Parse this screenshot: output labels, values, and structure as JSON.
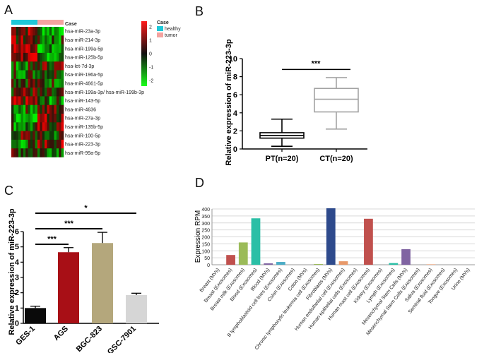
{
  "panels": {
    "a": "A",
    "b": "B",
    "c": "C",
    "d": "D"
  },
  "chart_data": [
    {
      "type": "heatmap",
      "panel": "A",
      "annotation_label": "Case",
      "legend_title": "Case",
      "legend": [
        {
          "label": "healthy",
          "color": "#1ec8d8"
        },
        {
          "label": "tumor",
          "color": "#f4a3a0"
        }
      ],
      "colorbar_ticks": [
        "2",
        "1",
        "0",
        "-1",
        "-2"
      ],
      "colorbar_range": [
        -2,
        2
      ],
      "rows": [
        "hsa-miR-23a-3p",
        "hsa-miR-214-3p",
        "hsa-miR-199a-5p",
        "hsa-miR-125b-5p",
        "hsa-let-7d-3p",
        "hsa-miR-196a-5p",
        "hsa-miR-4661-5p",
        "hsa-miR-199a-3p/ hsa-miR-199b-3p",
        "hsa-miR-143-5p",
        "hsa-miR-4636",
        "hsa-miR-27a-3p",
        "hsa-miR-135b-5p",
        "hsa-miR-100-5p",
        "hsa-miR-223-3p",
        "hsa-miR-99a-5p"
      ],
      "columns_healthy": 11,
      "columns_tumor": 11,
      "row_bias": [
        -0.6,
        -0.4,
        -0.8,
        -0.6,
        0.3,
        0.2,
        -0.2,
        -0.3,
        -0.5,
        0.3,
        0.6,
        0.4,
        -0.2,
        0.5,
        -0.1
      ]
    },
    {
      "type": "box",
      "panel": "B",
      "ylabel": "Relative expression of miR-223-3p",
      "ylim": [
        0,
        10
      ],
      "yticks": [
        0,
        2,
        4,
        6,
        8,
        10
      ],
      "categories": [
        "PT(n=20)",
        "CT(n=20)"
      ],
      "boxes": [
        {
          "name": "PT(n=20)",
          "min": 0.3,
          "q1": 1.2,
          "median": 1.5,
          "q3": 1.8,
          "max": 3.3
        },
        {
          "name": "CT(n=20)",
          "min": 2.2,
          "q1": 4.1,
          "median": 5.5,
          "q3": 6.7,
          "max": 7.9
        }
      ],
      "significance": "***"
    },
    {
      "type": "bar",
      "panel": "C",
      "ylabel": "Relative expression of miR-223-3p",
      "ylim": [
        0,
        6
      ],
      "yticks": [
        0,
        1,
        2,
        3,
        4,
        5,
        6
      ],
      "categories": [
        "GES-1",
        "AGS",
        "BGC-823",
        "GSC-7901"
      ],
      "values": [
        1.0,
        4.65,
        5.25,
        1.85
      ],
      "errors": [
        0.12,
        0.3,
        0.7,
        0.12
      ],
      "colors": [
        "#0a0a0a",
        "#a80f16",
        "#b4a77c",
        "#d6d6d6"
      ],
      "significance": [
        {
          "from": "GES-1",
          "to": "AGS",
          "label": "***"
        },
        {
          "from": "GES-1",
          "to": "BGC-823",
          "label": "***"
        },
        {
          "from": "GES-1",
          "to": "GSC-7901",
          "label": "*"
        }
      ]
    },
    {
      "type": "bar",
      "panel": "D",
      "ylabel": "Expression RPM",
      "ylim": [
        0,
        400
      ],
      "yticks": [
        0,
        50,
        100,
        150,
        200,
        250,
        300,
        350,
        400
      ],
      "categories": [
        "Breast (MVs)",
        "Breast (Exosomes)",
        "Breast milk (Exosomes)",
        "Blood (Exosomes)",
        "Blood (MVs)",
        "B lymphoblastoid cell lines (Exosomes)",
        "Colon (Exosomes)",
        "Colon (MVs)",
        "Chronic lymphocytic leukemia cell (Exosomes)",
        "Fibroblasts (MVs)",
        "Human endothelial cell (Exosomes)",
        "Human epithelial cells (Exosomes)",
        "Human mast cell (Exosomes)",
        "Kidney (Exosomes)",
        "Lymph (Exosomes)",
        "Mesenchymal Stem Cells (MVs)",
        "Mesenchymal Stem Cells (Exosomes)",
        "Saliva (Exosomes)",
        "Seminal fluid (Exosomes)",
        "Tongue (Exosomes)",
        "Urine (MVs)"
      ],
      "values": [
        0,
        70,
        160,
        333,
        10,
        20,
        0,
        0,
        5,
        405,
        25,
        0,
        330,
        0,
        12,
        112,
        0,
        3,
        0,
        0,
        0
      ],
      "colors": [
        "#4f81bd",
        "#c0504d",
        "#9bbb59",
        "#2bbfa6",
        "#8064a2",
        "#4bacc6",
        "#f79646",
        "#4f81bd",
        "#9bbb59",
        "#2e4a8c",
        "#e8996a",
        "#4bacc6",
        "#c0504d",
        "#9bbb59",
        "#2bbfa6",
        "#8064a2",
        "#4bacc6",
        "#e8996a",
        "#4f81bd",
        "#c0504d",
        "#9bbb59"
      ]
    }
  ]
}
